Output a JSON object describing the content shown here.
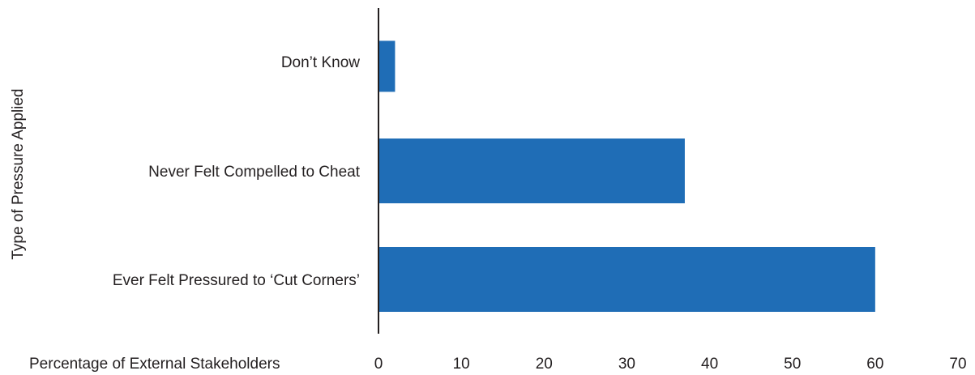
{
  "chart_data": {
    "type": "bar",
    "orientation": "horizontal",
    "categories": [
      "Don’t Know",
      "Never Felt Compelled to Cheat",
      "Ever Felt Pressured to ‘Cut Corners’"
    ],
    "values": [
      2,
      37,
      60
    ],
    "xlabel": "Percentage of External Stakeholders",
    "ylabel": "Type of Pressure Applied",
    "xlim": [
      0,
      70
    ],
    "xticks": [
      "0",
      "10",
      "20",
      "30",
      "40",
      "50",
      "60",
      "70"
    ],
    "grid": false,
    "legend": "none",
    "bar_color": "#1f6db6",
    "axis_color": "#231f20"
  }
}
